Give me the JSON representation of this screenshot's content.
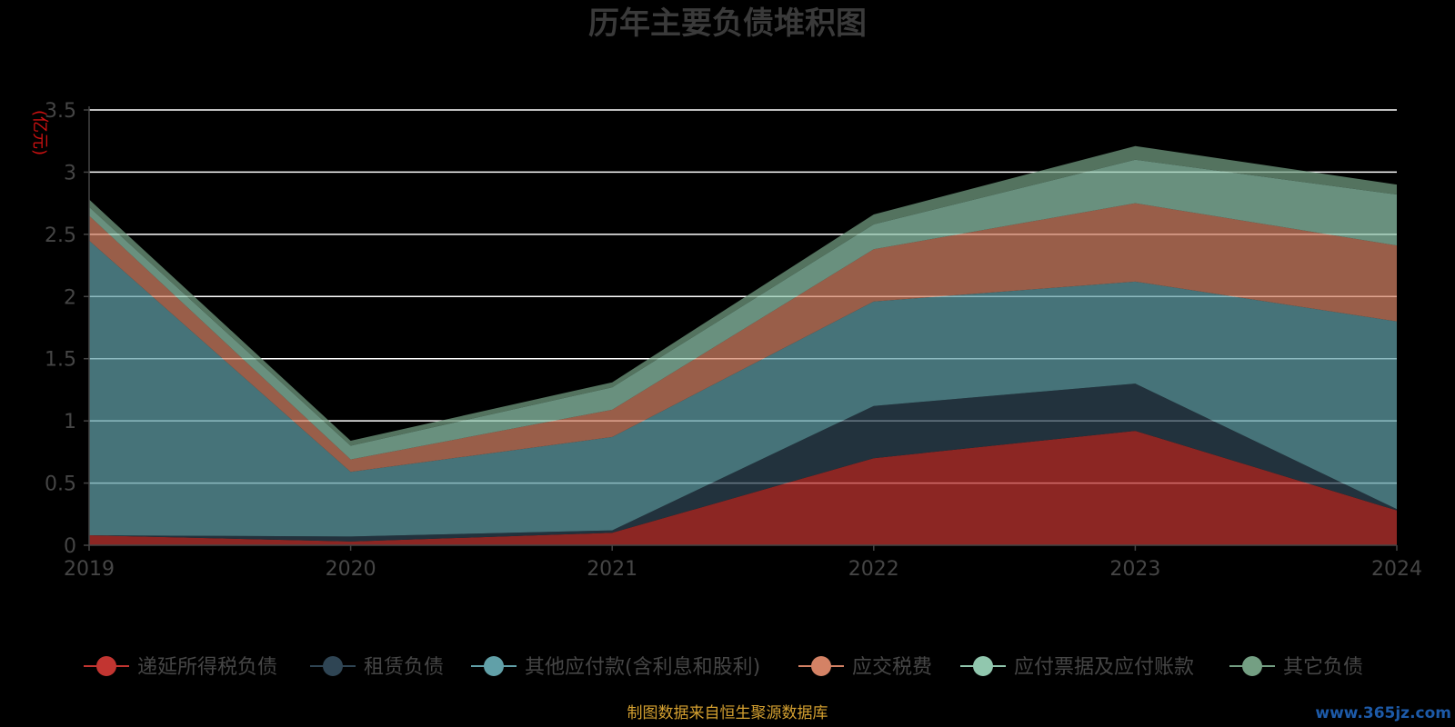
{
  "chart_data": {
    "type": "area",
    "stacked": true,
    "title": "历年主要负债堆积图",
    "unit_label": "(亿元)",
    "x": [
      "2019",
      "2020",
      "2021",
      "2022",
      "2023",
      "2024"
    ],
    "ylim": [
      0,
      3.5
    ],
    "yticks": [
      "0",
      "0.5",
      "1",
      "1.5",
      "2",
      "2.5",
      "3",
      "3.5"
    ],
    "grid": true,
    "legend_position": "bottom",
    "series": [
      {
        "name": "递延所得税负债",
        "color": "#c23531",
        "values": [
          0.08,
          0.03,
          0.1,
          0.7,
          0.92,
          0.28
        ]
      },
      {
        "name": "租赁负债",
        "color": "#2f4554",
        "values": [
          0.0,
          0.04,
          0.02,
          0.42,
          0.38,
          0.01
        ]
      },
      {
        "name": "其他应付款(含利息和股利)",
        "color": "#61a0a8",
        "values": [
          2.37,
          0.52,
          0.75,
          0.84,
          0.82,
          1.51
        ]
      },
      {
        "name": "应交税费",
        "color": "#d48265",
        "values": [
          0.2,
          0.1,
          0.22,
          0.42,
          0.63,
          0.61
        ]
      },
      {
        "name": "应付票据及应付账款",
        "color": "#91c7ae",
        "values": [
          0.07,
          0.11,
          0.18,
          0.2,
          0.35,
          0.41
        ]
      },
      {
        "name": "其它负债",
        "color": "#749f83",
        "values": [
          0.06,
          0.04,
          0.04,
          0.08,
          0.11,
          0.08
        ]
      }
    ]
  },
  "footer": {
    "source": "制图数据来自恒生聚源数据库",
    "watermark": "www.365jz.com"
  }
}
